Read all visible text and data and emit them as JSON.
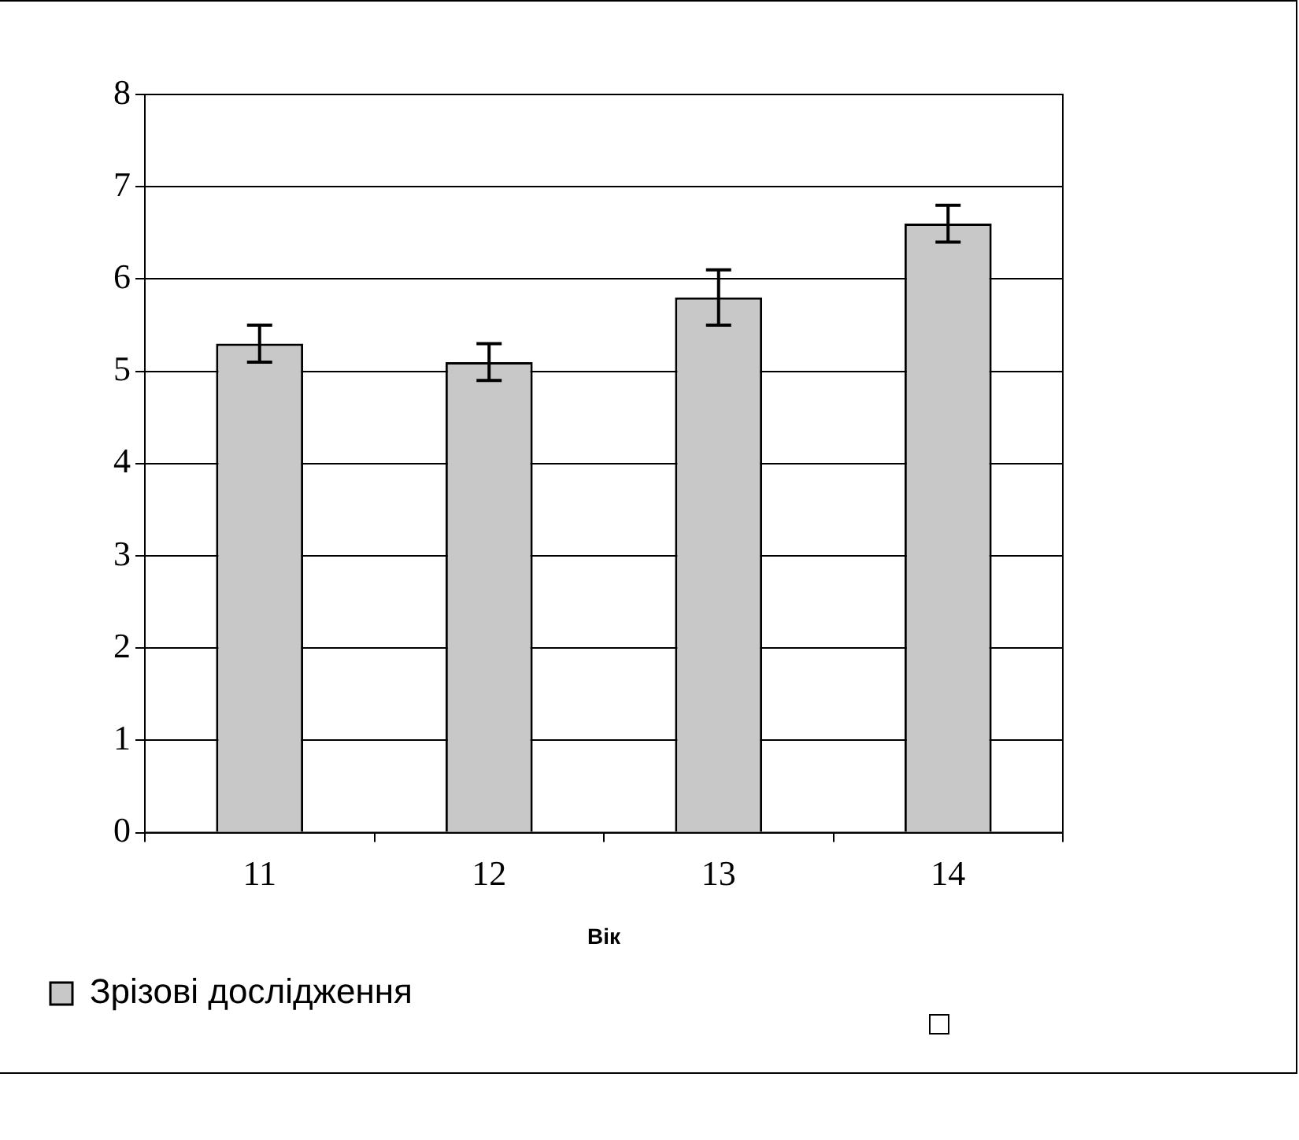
{
  "chart_data": {
    "type": "bar",
    "xlabel": "Вік",
    "categories": [
      "11",
      "12",
      "13",
      "14"
    ],
    "series": [
      {
        "name": "Зрізові дослідження",
        "color": "#c8c8c8",
        "values": [
          5.3,
          5.1,
          5.8,
          6.6
        ],
        "errors": [
          0.2,
          0.2,
          0.3,
          0.2
        ]
      }
    ],
    "ylim": [
      0,
      8
    ],
    "yticks": [
      0,
      1,
      2,
      3,
      4,
      5,
      6,
      7,
      8
    ],
    "grid": "y",
    "legend": "bottom left"
  }
}
